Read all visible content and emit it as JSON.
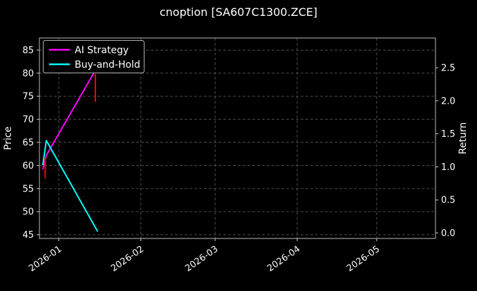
{
  "chart_data": {
    "type": "line",
    "title": "cnoption [SA607C1300.ZCE]",
    "background": "#000000",
    "grid": true,
    "legend_position": "upper-left",
    "x_domain_days": [
      -7.3,
      142.2
    ],
    "x_ticks": [
      {
        "label": "2026-01",
        "day": 0
      },
      {
        "label": "2026-02",
        "day": 31
      },
      {
        "label": "2026-03",
        "day": 59
      },
      {
        "label": "2026-04",
        "day": 90
      },
      {
        "label": "2026-05",
        "day": 120
      }
    ],
    "left_axis": {
      "label": "Price",
      "ticks": [
        45,
        50,
        55,
        60,
        65,
        70,
        75,
        80,
        85
      ],
      "lim": [
        44.2,
        87.6
      ]
    },
    "right_axis": {
      "label": "Return",
      "ticks": [
        "0.0",
        "0.5",
        "1.0",
        "1.5",
        "2.0",
        "2.5"
      ],
      "lim": [
        -0.084,
        2.95
      ]
    },
    "series": [
      {
        "name": "AI Strategy",
        "color": "#ff00ff",
        "axis": "left",
        "points": [
          [
            -6.0,
            59.3
          ],
          [
            -4.7,
            62.2
          ],
          [
            13.5,
            80.3
          ]
        ]
      },
      {
        "name": "Buy-and-Hold",
        "color": "#00ffff",
        "axis": "left",
        "points": [
          [
            -6.0,
            60.2
          ],
          [
            -4.7,
            65.4
          ],
          [
            14.6,
            45.8
          ]
        ]
      }
    ],
    "event_bars": {
      "color": "#ff0000",
      "segments": [
        {
          "day": -5.1,
          "low": 57.2,
          "high": 61.7
        },
        {
          "day": 13.8,
          "low": 73.8,
          "high": 79.8
        }
      ]
    }
  }
}
